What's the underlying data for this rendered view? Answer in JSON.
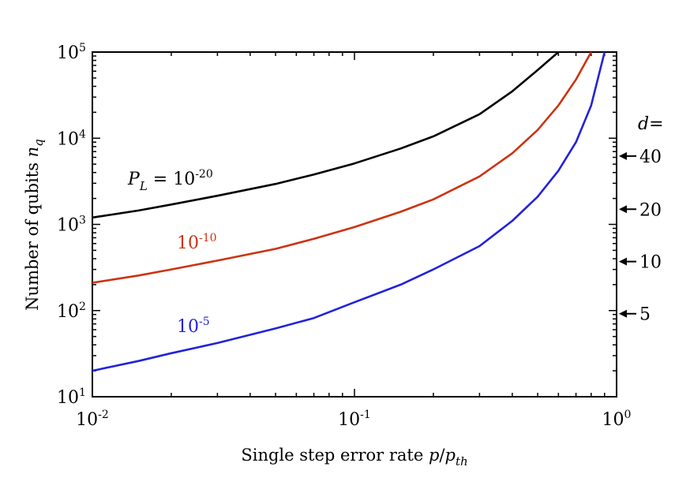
{
  "chart_data": {
    "type": "line",
    "title": "",
    "xlabel": "Single step error rate p/p_th",
    "xlabel_text": "Single step error rate ",
    "xlabel_var": "p",
    "xlabel_sub": "th",
    "ylabel": "Number of qubits n_q",
    "ylabel_text": "Number of qubits ",
    "ylabel_var": "n",
    "ylabel_sub": "q",
    "x_scale": "log",
    "y_scale": "log",
    "xlim": [
      0.01,
      1
    ],
    "ylim": [
      10,
      100000
    ],
    "x_ticks": [
      {
        "value": 0.01,
        "base": "10",
        "exp": "-2"
      },
      {
        "value": 0.1,
        "base": "10",
        "exp": "-1"
      },
      {
        "value": 1,
        "base": "10",
        "exp": "0"
      }
    ],
    "y_ticks": [
      {
        "value": 10,
        "base": "10",
        "exp": "1"
      },
      {
        "value": 100,
        "base": "10",
        "exp": "2"
      },
      {
        "value": 1000,
        "base": "10",
        "exp": "3"
      },
      {
        "value": 10000,
        "base": "10",
        "exp": "4"
      },
      {
        "value": 100000,
        "base": "10",
        "exp": "5"
      }
    ],
    "series": [
      {
        "name": "P_L = 10^-20",
        "label_prefix_var": "P",
        "label_prefix_sub": "L",
        "label_prefix_eq": " = ",
        "label_base": "10",
        "label_exp": "-20",
        "color": "#000000",
        "x": [
          0.01,
          0.015,
          0.02,
          0.03,
          0.05,
          0.07,
          0.1,
          0.15,
          0.2,
          0.3,
          0.4,
          0.5,
          0.6
        ],
        "y": [
          1200,
          1450,
          1700,
          2150,
          2950,
          3800,
          5100,
          7600,
          10500,
          19000,
          35000,
          62000,
          100000
        ]
      },
      {
        "name": "10^-10",
        "label_base": "10",
        "label_exp": "-10",
        "color": "#cc3311",
        "x": [
          0.01,
          0.015,
          0.02,
          0.03,
          0.05,
          0.07,
          0.1,
          0.15,
          0.2,
          0.3,
          0.4,
          0.5,
          0.6,
          0.7,
          0.8
        ],
        "y": [
          210,
          255,
          300,
          380,
          520,
          680,
          930,
          1400,
          1950,
          3600,
          6700,
          12500,
          24000,
          48000,
          100000
        ]
      },
      {
        "name": "10^-5",
        "label_base": "10",
        "label_exp": "-5",
        "color": "#2222dd",
        "x": [
          0.01,
          0.015,
          0.02,
          0.03,
          0.05,
          0.07,
          0.1,
          0.15,
          0.2,
          0.3,
          0.4,
          0.5,
          0.6,
          0.7,
          0.8,
          0.9
        ],
        "y": [
          20,
          26,
          32,
          42,
          62,
          82,
          125,
          200,
          300,
          560,
          1100,
          2100,
          4200,
          9000,
          24000,
          100000
        ]
      }
    ],
    "right_axis": {
      "label": "d=",
      "markers": [
        {
          "label": "40",
          "value": 6200
        },
        {
          "label": "20",
          "value": 1500
        },
        {
          "label": "10",
          "value": 370
        },
        {
          "label": "5",
          "value": 92
        }
      ]
    }
  }
}
